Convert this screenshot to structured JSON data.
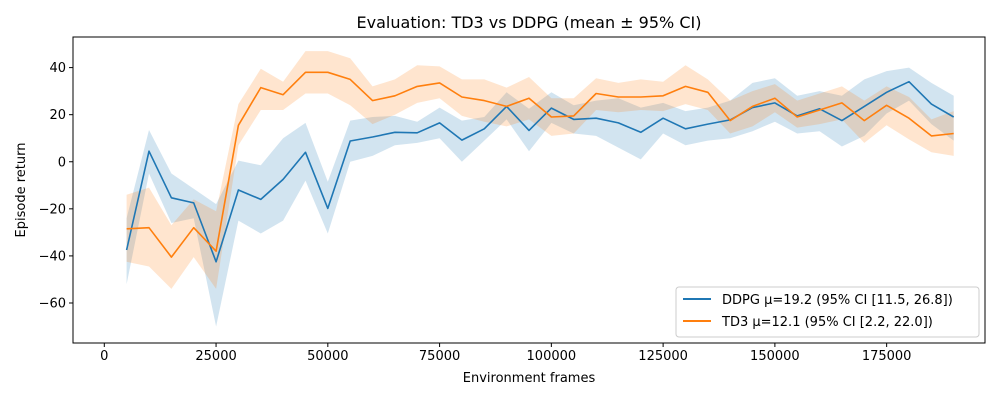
{
  "chart_data": {
    "type": "line",
    "title": "Evaluation: TD3 vs DDPG (mean ± 95% CI)",
    "xlabel": "Environment frames",
    "ylabel": "Episode return",
    "xlim": [
      -7000,
      197000
    ],
    "ylim": [
      -77,
      53
    ],
    "xticks": [
      0,
      25000,
      50000,
      75000,
      100000,
      125000,
      150000,
      175000
    ],
    "xtick_labels": [
      "0",
      "25000",
      "50000",
      "75000",
      "100000",
      "125000",
      "150000",
      "175000"
    ],
    "yticks": [
      -60,
      -40,
      -20,
      0,
      20,
      40
    ],
    "ytick_labels": [
      "−60",
      "−40",
      "−20",
      "0",
      "20",
      "40"
    ],
    "grid": false,
    "legend_position": "lower-right",
    "x": [
      5000,
      10000,
      15000,
      20000,
      25000,
      30000,
      35000,
      40000,
      45000,
      50000,
      55000,
      60000,
      65000,
      70000,
      75000,
      80000,
      85000,
      90000,
      95000,
      100000,
      105000,
      110000,
      115000,
      120000,
      125000,
      130000,
      135000,
      140000,
      145000,
      150000,
      155000,
      160000,
      165000,
      170000,
      175000,
      180000,
      185000,
      190000
    ],
    "series": [
      {
        "name": "DDPG μ=19.2  (95% CI [11.5, 26.8])",
        "color": "#1f77b4",
        "band_color": "#1f77b4",
        "values": [
          -37.5,
          4.5,
          -15.3,
          -17.5,
          -42.5,
          -12,
          -16,
          -7.5,
          4,
          -19.8,
          8.8,
          10.5,
          12.5,
          12.3,
          16.5,
          9.2,
          14,
          23.5,
          13.3,
          22.8,
          18,
          18.5,
          16.5,
          12.5,
          18.5,
          14,
          16,
          17.8,
          23,
          25,
          19.5,
          22.5,
          17.5,
          23.5,
          29.5,
          34,
          24.5,
          19
        ],
        "lower": [
          -52,
          -5,
          -26,
          -24,
          -70,
          -25,
          -30.5,
          -25,
          -8,
          -30.5,
          0,
          2.5,
          7,
          8,
          10,
          0,
          9,
          18,
          4.5,
          16.5,
          12,
          11,
          6,
          1,
          12,
          7,
          9,
          10,
          13,
          17,
          12,
          13,
          6.5,
          11,
          20.5,
          26,
          16,
          9
        ],
        "upper": [
          -24,
          13.5,
          -5,
          -11.5,
          -18,
          0.5,
          -1.5,
          10,
          16.5,
          -8.5,
          17.5,
          19,
          19.5,
          17,
          23,
          17.5,
          19,
          29.5,
          22.5,
          29.5,
          24,
          26,
          27,
          23,
          25,
          21.5,
          23,
          26,
          33.5,
          35.5,
          28,
          30,
          28,
          35,
          38.5,
          40,
          33.5,
          28
        ]
      },
      {
        "name": "TD3  μ=12.1  (95% CI [2.2, 22.0])",
        "color": "#ff7f0e",
        "band_color": "#ff7f0e",
        "values": [
          -28.5,
          -28,
          -40.5,
          -28,
          -38,
          15.5,
          31.5,
          28.5,
          38,
          38,
          35,
          26,
          28,
          32,
          33.5,
          27.5,
          26,
          23.5,
          27,
          19,
          19.5,
          29,
          27.5,
          27.5,
          28,
          32,
          29.5,
          17.5,
          23.5,
          27,
          19,
          22,
          25,
          17.5,
          24,
          18.5,
          11,
          12
        ],
        "lower": [
          -42.5,
          -44.5,
          -54,
          -40.5,
          -54,
          7,
          22,
          22,
          29,
          29,
          24,
          16,
          20,
          25,
          27,
          19.5,
          17,
          15,
          18,
          11,
          12,
          22,
          21,
          22,
          21.5,
          24.5,
          22,
          12,
          15,
          21,
          14.5,
          16,
          18,
          8,
          15.5,
          9.5,
          4,
          2.5
        ],
        "upper": [
          -14,
          -11,
          -27,
          -16,
          -21,
          24.5,
          39.5,
          34,
          47,
          47,
          44,
          32,
          35,
          41,
          40.5,
          35,
          35,
          31.5,
          36,
          27,
          27,
          35.5,
          33.5,
          35,
          34,
          41,
          35,
          26,
          30,
          33,
          26,
          29,
          32,
          26,
          32,
          27.5,
          18,
          21.5
        ]
      }
    ]
  }
}
